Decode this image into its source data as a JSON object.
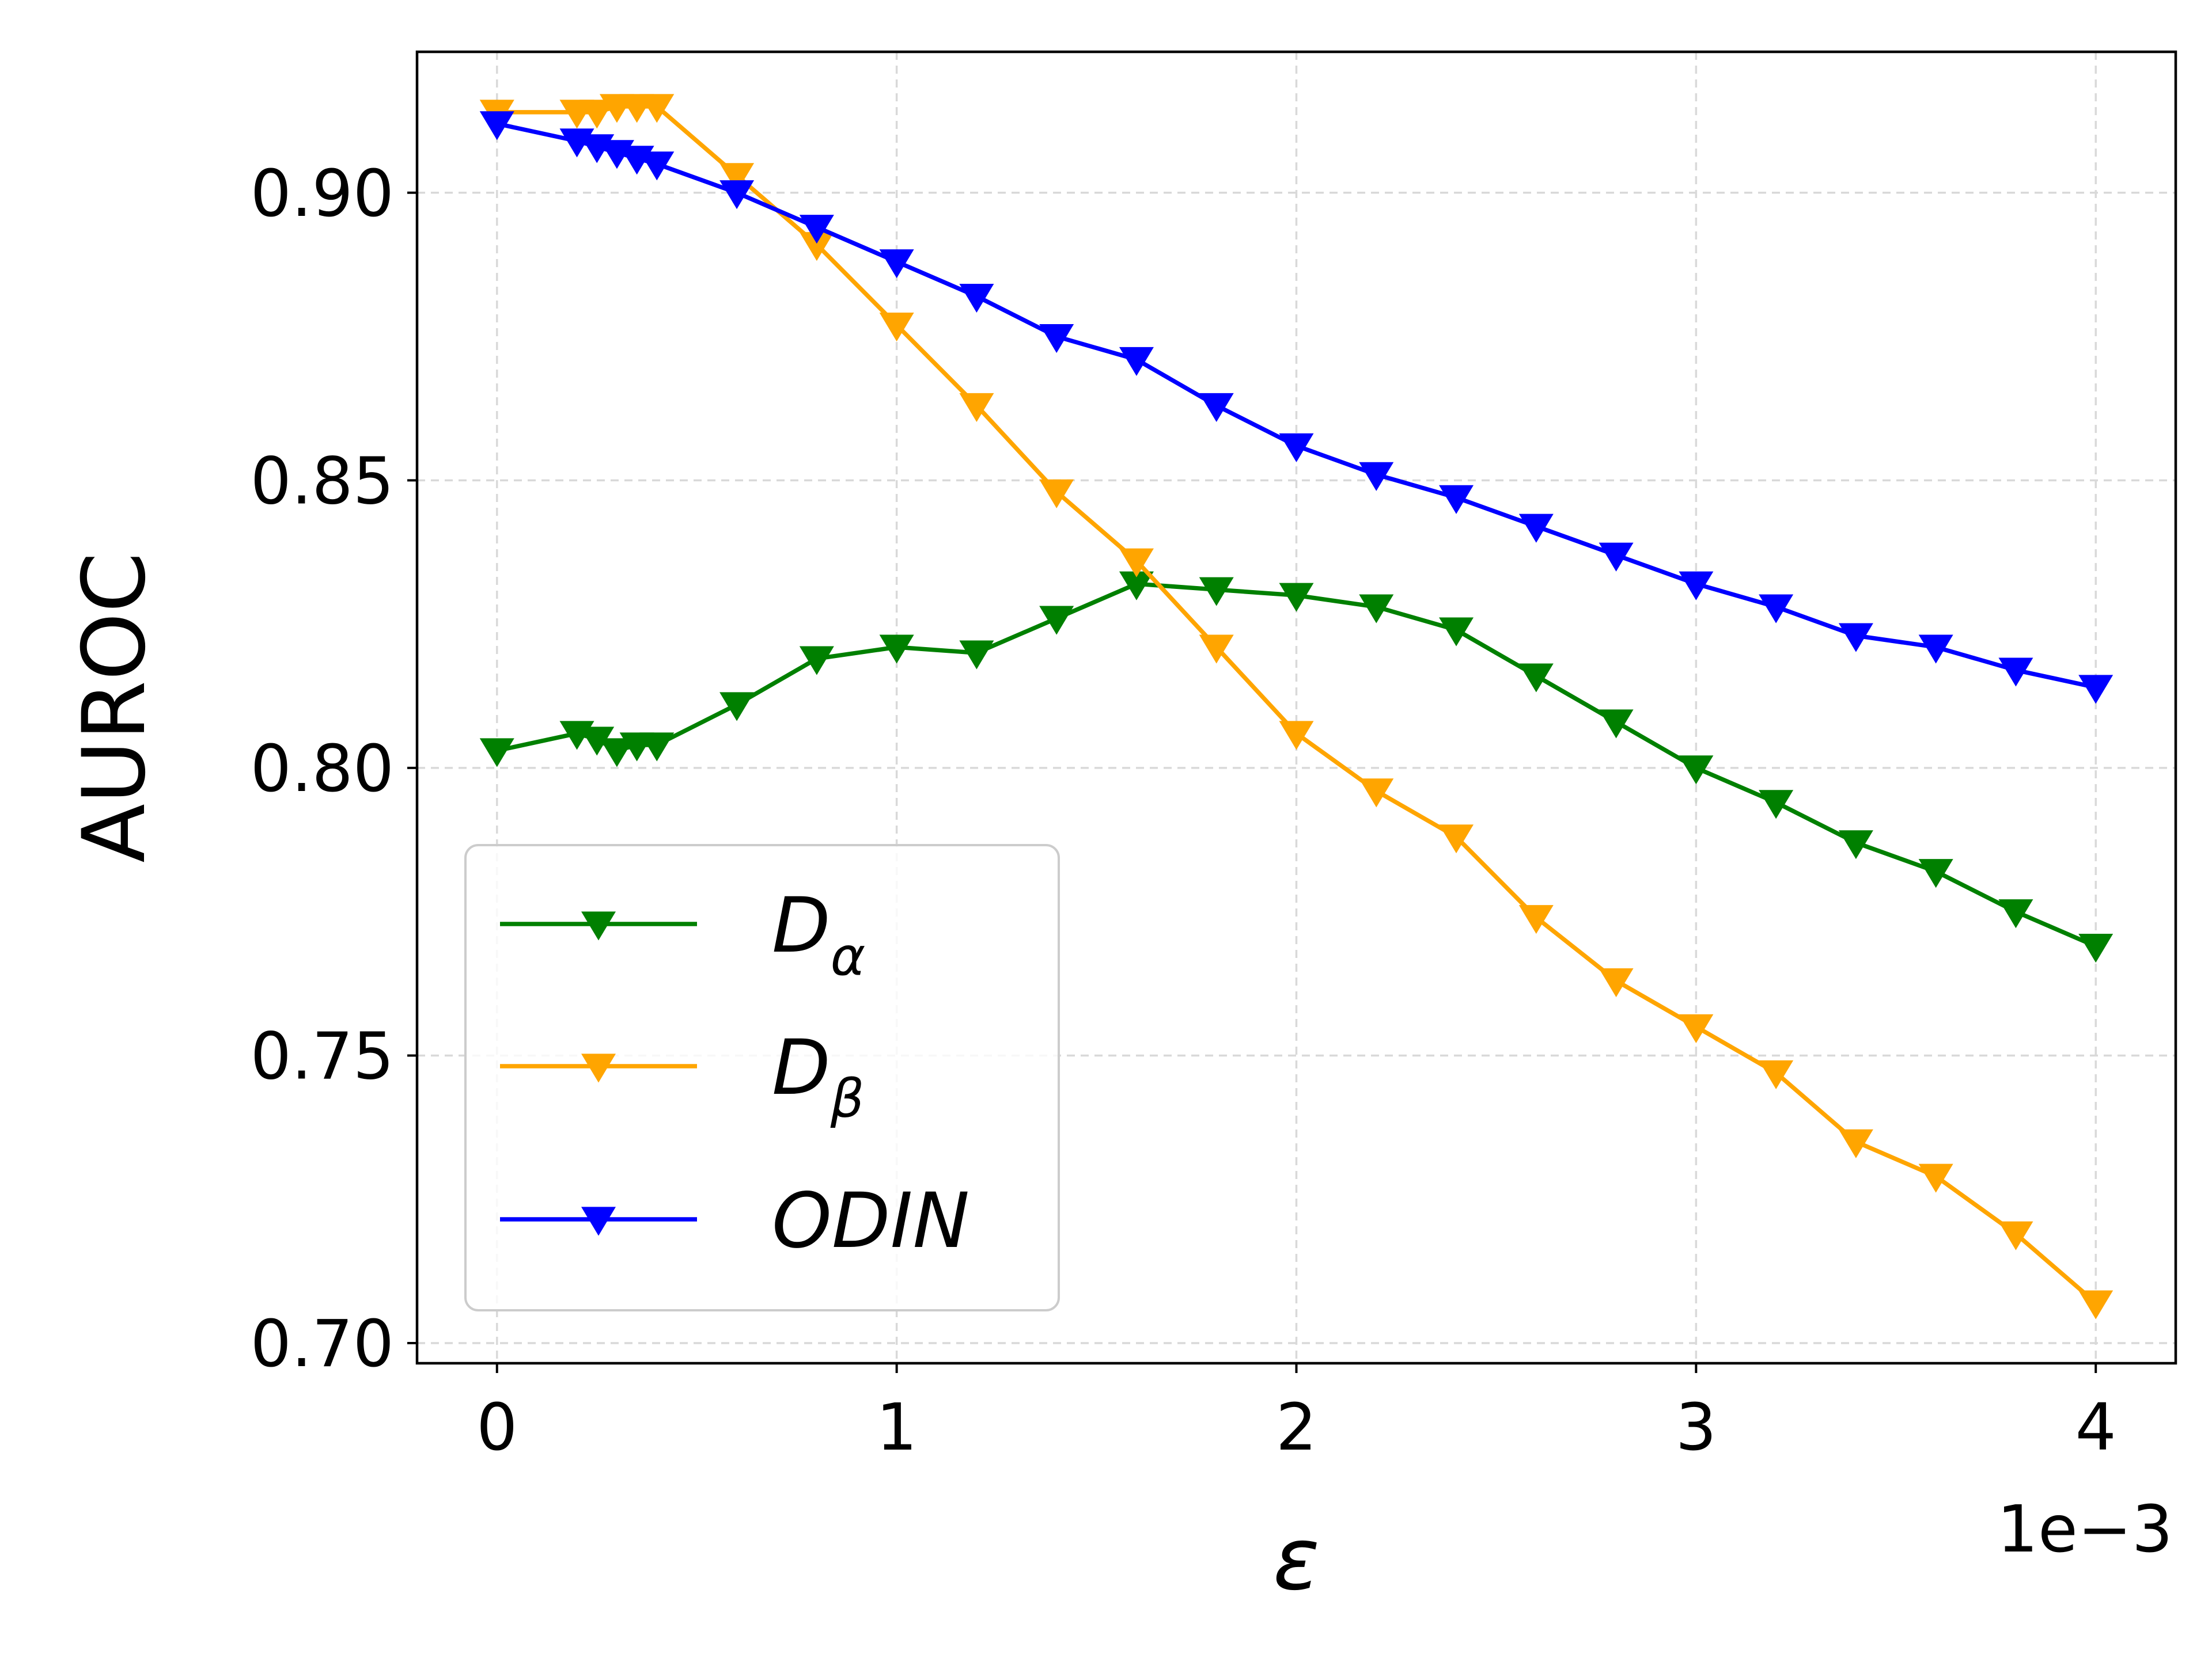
{
  "chart_data": {
    "type": "line",
    "title": "",
    "xlabel": "ε",
    "ylabel": "AUROC",
    "x_offset_label": "1e−3",
    "xlim": [
      -0.0002,
      0.0042
    ],
    "ylim": [
      0.6965,
      0.9245
    ],
    "xticks": [
      0,
      0.001,
      0.002,
      0.003,
      0.004
    ],
    "xtick_labels": [
      "0",
      "1",
      "2",
      "3",
      "4"
    ],
    "yticks": [
      0.7,
      0.75,
      0.8,
      0.85,
      0.9
    ],
    "ytick_labels": [
      "0.70",
      "0.75",
      "0.80",
      "0.85",
      "0.90"
    ],
    "grid": true,
    "legend_position": "lower-left",
    "x": [
      0,
      0.0002,
      0.00025,
      0.0003,
      0.00035,
      0.0004,
      0.0006,
      0.0008,
      0.001,
      0.0012,
      0.0014,
      0.0016,
      0.0018,
      0.002,
      0.0022,
      0.0024,
      0.0026,
      0.0028,
      0.003,
      0.0032,
      0.0034,
      0.0036,
      0.0038,
      0.004
    ],
    "series": [
      {
        "name": "D_α",
        "legend_main": "D",
        "legend_sub": "α",
        "color": "#008000",
        "marker": "triangle-down",
        "values": [
          0.803,
          0.806,
          0.805,
          0.803,
          0.804,
          0.804,
          0.811,
          0.819,
          0.821,
          0.82,
          0.826,
          0.832,
          0.831,
          0.83,
          0.828,
          0.824,
          0.816,
          0.808,
          0.8,
          0.794,
          0.787,
          0.782,
          0.775,
          0.769
        ]
      },
      {
        "name": "D_β",
        "legend_main": "D",
        "legend_sub": "β",
        "color": "#FFA500",
        "marker": "triangle-down",
        "values": [
          0.914,
          0.914,
          0.914,
          0.915,
          0.915,
          0.915,
          0.903,
          0.891,
          0.877,
          0.863,
          0.848,
          0.836,
          0.821,
          0.806,
          0.796,
          0.788,
          0.774,
          0.763,
          0.755,
          0.747,
          0.735,
          0.729,
          0.719,
          0.707
        ]
      },
      {
        "name": "ODIN",
        "legend_main": "ODIN",
        "legend_sub": "",
        "color": "#0000FF",
        "marker": "triangle-down",
        "values": [
          0.912,
          0.909,
          0.908,
          0.907,
          0.906,
          0.905,
          0.9,
          0.894,
          0.888,
          0.882,
          0.875,
          0.871,
          0.863,
          0.856,
          0.851,
          0.847,
          0.842,
          0.837,
          0.832,
          0.828,
          0.823,
          0.821,
          0.817,
          0.814
        ]
      }
    ]
  }
}
